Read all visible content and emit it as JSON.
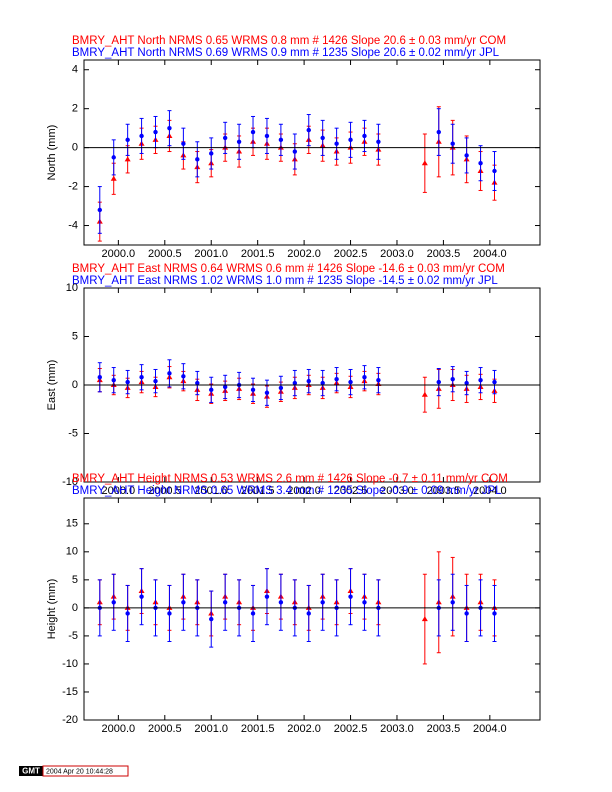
{
  "chart_data": [
    {
      "type": "scatter",
      "ylabel": "North (mm)",
      "x": [
        1999.8,
        1999.95,
        2000.1,
        2000.25,
        2000.4,
        2000.55,
        2000.7,
        2000.85,
        2001.0,
        2001.15,
        2001.3,
        2001.45,
        2001.6,
        2001.75,
        2001.9,
        2002.05,
        2002.2,
        2002.35,
        2002.5,
        2002.65,
        2002.8,
        2003.3,
        2003.45,
        2003.6,
        2003.75,
        2003.9,
        2004.05
      ],
      "xlim": [
        1999.63,
        2004.54
      ],
      "xticks": [
        {
          "value": 2000,
          "label": "2000.0"
        },
        {
          "value": 2000.5,
          "label": "2000.5"
        },
        {
          "value": 2001,
          "label": "2001.0"
        },
        {
          "value": 2001.5,
          "label": "2001.5"
        },
        {
          "value": 2002,
          "label": "2002.0"
        },
        {
          "value": 2002.5,
          "label": "2002.5"
        },
        {
          "value": 2003,
          "label": "2003.0"
        },
        {
          "value": 2003.5,
          "label": "2003.5"
        },
        {
          "value": 2004,
          "label": "2004.0"
        }
      ],
      "ylim": [
        -5,
        4.5
      ],
      "yticks": [
        -4,
        -2,
        0,
        2,
        4
      ],
      "reference_line": 0,
      "series": [
        {
          "name": "BMRY_AHT North NRMS 0.65 WRMS  0.8 mm # 1426 Slope   20.6 ±  0.03 mm/yr COM",
          "color": "#ff0000",
          "marker": "triangle",
          "values": [
            -3.8,
            -1.6,
            -0.6,
            0.2,
            0.4,
            0.6,
            -0.4,
            -1.0,
            -0.8,
            0.0,
            -0.2,
            0.3,
            0.2,
            0.0,
            -0.6,
            0.4,
            0.1,
            -0.2,
            0.0,
            0.3,
            -0.1,
            -0.8,
            0.3,
            0.0,
            -0.6,
            -1.2,
            -1.8
          ],
          "errors": [
            1.0,
            0.8,
            0.7,
            0.8,
            0.7,
            0.8,
            0.7,
            0.8,
            0.7,
            0.7,
            0.8,
            0.7,
            0.8,
            0.7,
            0.8,
            0.7,
            0.8,
            0.7,
            0.8,
            0.7,
            0.8,
            1.5,
            1.8,
            1.4,
            1.2,
            1.0,
            0.9
          ]
        },
        {
          "name": "BMRY_AHT North NRMS 0.69 WRMS  0.9 mm # 1235 Slope   20.6 ±  0.02 mm/yr JPL",
          "color": "#0000ff",
          "marker": "circle",
          "values": [
            -3.2,
            -0.5,
            0.4,
            0.6,
            0.8,
            1.0,
            0.2,
            -0.6,
            -0.3,
            0.5,
            0.3,
            0.8,
            0.6,
            0.4,
            -0.2,
            0.9,
            0.5,
            0.2,
            0.4,
            0.6,
            0.3,
            null,
            0.8,
            0.2,
            -0.4,
            -0.8,
            -1.2
          ],
          "errors": [
            1.2,
            0.9,
            0.8,
            0.9,
            0.8,
            0.9,
            0.8,
            0.9,
            0.8,
            0.8,
            0.9,
            0.8,
            0.9,
            0.8,
            0.9,
            0.8,
            0.9,
            0.8,
            0.9,
            0.8,
            0.9,
            null,
            1.2,
            1.0,
            0.9,
            0.9,
            1.0
          ]
        }
      ]
    },
    {
      "type": "scatter",
      "ylabel": "East (mm)",
      "x": [
        1999.8,
        1999.95,
        2000.1,
        2000.25,
        2000.4,
        2000.55,
        2000.7,
        2000.85,
        2001.0,
        2001.15,
        2001.3,
        2001.45,
        2001.6,
        2001.75,
        2001.9,
        2002.05,
        2002.2,
        2002.35,
        2002.5,
        2002.65,
        2002.8,
        2003.3,
        2003.45,
        2003.6,
        2003.75,
        2003.9,
        2004.05
      ],
      "xlim": [
        1999.63,
        2004.54
      ],
      "xticks": [
        {
          "value": 2000,
          "label": "2000.0"
        },
        {
          "value": 2000.5,
          "label": "2000.5"
        },
        {
          "value": 2001,
          "label": "2001.0"
        },
        {
          "value": 2001.5,
          "label": "2001.5"
        },
        {
          "value": 2002,
          "label": "2002.0"
        },
        {
          "value": 2002.5,
          "label": "2002.5"
        },
        {
          "value": 2003,
          "label": "2003.0"
        },
        {
          "value": 2003.5,
          "label": "2003.5"
        },
        {
          "value": 2004,
          "label": "2004.0"
        }
      ],
      "ylim": [
        -10,
        10
      ],
      "yticks": [
        -10,
        -5,
        0,
        5,
        10
      ],
      "reference_line": 0,
      "series": [
        {
          "name": "BMRY_AHT East NRMS 0.64 WRMS  0.6 mm # 1426 Slope  -14.6 ±  0.03 mm/yr COM",
          "color": "#ff0000",
          "marker": "triangle",
          "values": [
            0.5,
            0.0,
            -0.3,
            0.3,
            -0.2,
            0.8,
            0.4,
            -0.5,
            -0.9,
            -0.6,
            -0.4,
            -0.9,
            -1.2,
            -0.7,
            -0.3,
            0.0,
            -0.3,
            0.2,
            -0.2,
            0.4,
            0.1,
            -1.0,
            -0.4,
            0.0,
            -0.4,
            -0.2,
            -0.6
          ],
          "errors": [
            1.2,
            1.0,
            1.0,
            1.1,
            1.0,
            1.1,
            1.0,
            1.1,
            1.0,
            1.0,
            1.1,
            1.0,
            1.1,
            1.0,
            1.1,
            1.0,
            1.1,
            1.0,
            1.1,
            1.0,
            1.1,
            1.8,
            2.0,
            1.6,
            1.4,
            1.3,
            1.2
          ]
        },
        {
          "name": "BMRY_AHT East NRMS 1.02 WRMS  1.0 mm # 1235 Slope  -14.5 ±  0.02 mm/yr JPL",
          "color": "#0000ff",
          "marker": "circle",
          "values": [
            0.8,
            0.5,
            0.3,
            0.8,
            0.4,
            1.2,
            0.9,
            0.2,
            -0.5,
            -0.2,
            0.0,
            -0.5,
            -0.8,
            -0.3,
            0.2,
            0.4,
            0.2,
            0.6,
            0.3,
            0.8,
            0.5,
            null,
            0.3,
            0.6,
            0.2,
            0.5,
            0.3
          ],
          "errors": [
            1.5,
            1.3,
            1.2,
            1.3,
            1.2,
            1.4,
            1.3,
            1.2,
            1.3,
            1.2,
            1.3,
            1.2,
            1.3,
            1.2,
            1.3,
            1.2,
            1.3,
            1.2,
            1.3,
            1.2,
            1.3,
            null,
            1.4,
            1.3,
            1.2,
            1.3,
            1.2
          ]
        }
      ]
    },
    {
      "type": "scatter",
      "ylabel": "Height (mm)",
      "x": [
        1999.8,
        1999.95,
        2000.1,
        2000.25,
        2000.4,
        2000.55,
        2000.7,
        2000.85,
        2001.0,
        2001.15,
        2001.3,
        2001.45,
        2001.6,
        2001.75,
        2001.9,
        2002.05,
        2002.2,
        2002.35,
        2002.5,
        2002.65,
        2002.8,
        2003.3,
        2003.45,
        2003.6,
        2003.75,
        2003.9,
        2004.05
      ],
      "xlim": [
        1999.63,
        2004.54
      ],
      "xticks": [
        {
          "value": 2000,
          "label": "2000.0"
        },
        {
          "value": 2000.5,
          "label": "2000.5"
        },
        {
          "value": 2001,
          "label": "2001.0"
        },
        {
          "value": 2001.5,
          "label": "2001.5"
        },
        {
          "value": 2002,
          "label": "2002.0"
        },
        {
          "value": 2002.5,
          "label": "2002.5"
        },
        {
          "value": 2003,
          "label": "2003.0"
        },
        {
          "value": 2003.5,
          "label": "2003.5"
        },
        {
          "value": 2004,
          "label": "2004.0"
        }
      ],
      "ylim": [
        -20,
        19.6
      ],
      "yticks": [
        -20,
        -15,
        -10,
        -5,
        0,
        5,
        10,
        15
      ],
      "reference_line": 0,
      "series": [
        {
          "name": "BMRY_AHT Height NRMS 0.53 WRMS  2.6 mm # 1426 Slope   -0.7 ±  0.11 mm/yr COM",
          "color": "#ff0000",
          "marker": "triangle",
          "values": [
            1,
            2,
            0,
            3,
            1,
            0,
            2,
            1,
            -1,
            2,
            1,
            0,
            3,
            2,
            1,
            0,
            2,
            1,
            3,
            2,
            1,
            -2,
            1,
            2,
            0,
            1,
            0
          ],
          "errors": [
            4,
            4,
            4,
            4,
            4,
            4,
            4,
            4,
            4,
            4,
            4,
            4,
            4,
            4,
            4,
            4,
            4,
            4,
            4,
            4,
            4,
            8,
            9,
            7,
            6,
            5,
            5
          ]
        },
        {
          "name": "BMRY_AHT Height NRMS 0.65 WRMS  3.4 mm # 1235 Slope   -0.9 ±  0.09 mm/yr JPL",
          "color": "#0000ff",
          "marker": "circle",
          "values": [
            0,
            1,
            -1,
            2,
            0,
            -1,
            1,
            0,
            -2,
            1,
            0,
            -1,
            2,
            1,
            0,
            -1,
            1,
            0,
            2,
            1,
            0,
            null,
            0,
            1,
            -1,
            0,
            -1
          ],
          "errors": [
            5,
            5,
            5,
            5,
            5,
            5,
            5,
            5,
            5,
            5,
            5,
            5,
            5,
            5,
            5,
            5,
            5,
            5,
            5,
            5,
            5,
            null,
            5,
            5,
            5,
            5,
            5
          ]
        }
      ]
    }
  ],
  "footer": {
    "logo": "GMT",
    "timestamp": "2004 Apr 20 10:44:28"
  }
}
